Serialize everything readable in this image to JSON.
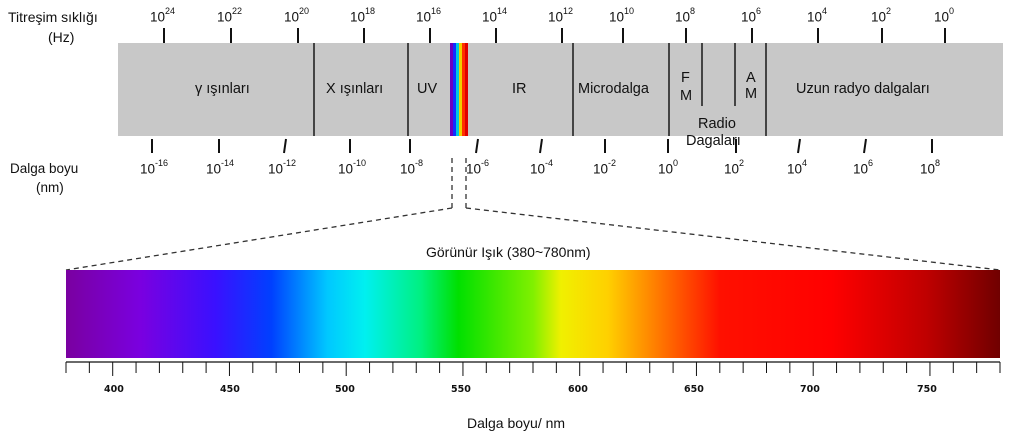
{
  "header": {
    "frequency_label_line1": "Titreşim sıklığı",
    "frequency_label_line2": "(Hz)",
    "wavelength_label_line1": "Dalga boyu",
    "wavelength_label_line2": "(nm)"
  },
  "frequency_ticks": [
    {
      "base": "10",
      "exp": "24"
    },
    {
      "base": "10",
      "exp": "22"
    },
    {
      "base": "10",
      "exp": "20"
    },
    {
      "base": "10",
      "exp": "18"
    },
    {
      "base": "10",
      "exp": "16"
    },
    {
      "base": "10",
      "exp": "14"
    },
    {
      "base": "10",
      "exp": "12"
    },
    {
      "base": "10",
      "exp": "10"
    },
    {
      "base": "10",
      "exp": "8"
    },
    {
      "base": "10",
      "exp": "6"
    },
    {
      "base": "10",
      "exp": "4"
    },
    {
      "base": "10",
      "exp": "2"
    },
    {
      "base": "10",
      "exp": "0"
    }
  ],
  "wavelength_ticks": [
    {
      "base": "10",
      "exp": "-16"
    },
    {
      "base": "10",
      "exp": "-14"
    },
    {
      "base": "10",
      "exp": "-12"
    },
    {
      "base": "10",
      "exp": "-10"
    },
    {
      "base": "10",
      "exp": "-8"
    },
    {
      "base": "10",
      "exp": "-6"
    },
    {
      "base": "10",
      "exp": "-4"
    },
    {
      "base": "10",
      "exp": "-2"
    },
    {
      "base": "10",
      "exp": "0"
    },
    {
      "base": "10",
      "exp": "2"
    },
    {
      "base": "10",
      "exp": "4"
    },
    {
      "base": "10",
      "exp": "6"
    },
    {
      "base": "10",
      "exp": "8"
    }
  ],
  "bands": {
    "gamma": "γ ışınları",
    "xray": "X ışınları",
    "uv": "UV",
    "ir": "IR",
    "microwave": "Microdalga",
    "fm_f": "F",
    "fm_m": "M",
    "am_a": "A",
    "am_m": "M",
    "long_radio": "Uzun radyo dalgaları",
    "radio_line1": "Radio",
    "radio_line2": "Dagaları"
  },
  "visible": {
    "title": "Görünür Işık (380~780nm)",
    "range_nm": [
      380,
      780
    ],
    "tick_labels": [
      "400",
      "450",
      "500",
      "550",
      "600",
      "650",
      "700",
      "750"
    ],
    "axis_label": "Dalga boyu/ nm"
  },
  "colors": {
    "band_fill": "#c8c8c8",
    "band_divider": "#222222",
    "spectrum_violet": "#7a00c8",
    "spectrum_blue": "#0000ff",
    "spectrum_cyan": "#00e8f0",
    "spectrum_green": "#00e000",
    "spectrum_yellow": "#f0f000",
    "spectrum_red": "#ff0000",
    "spectrum_darkred": "#7a0000"
  }
}
